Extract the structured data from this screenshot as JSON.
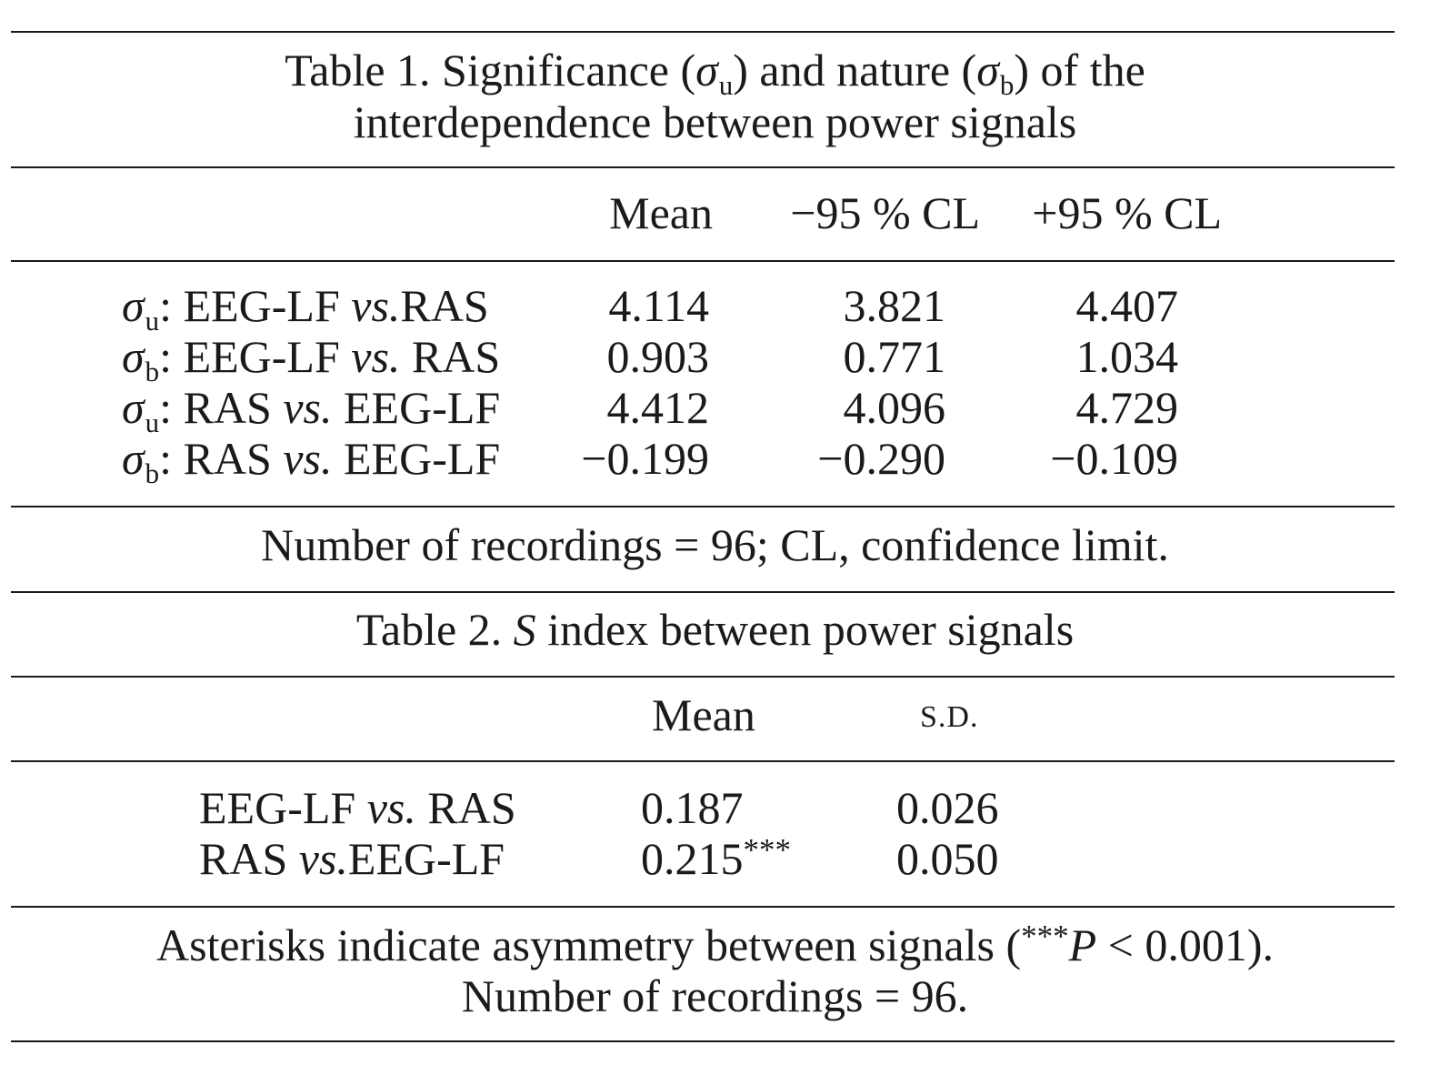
{
  "table1": {
    "title_prefix": "Table 1. Significance (",
    "title_sigma": "σ",
    "title_sub_u": "u",
    "title_mid": ") and nature (",
    "title_sub_b": "b",
    "title_suffix": ") of the",
    "title_line2": "interdependence between power signals",
    "columns": [
      "Mean",
      "−95 % CL",
      "+95 % CL"
    ],
    "rows": [
      {
        "sigma": "σ",
        "sub": "u",
        "pre": ": EEG-LF ",
        "vs": "vs.",
        "post": "RAS",
        "mean": "4.114",
        "lo": "3.821",
        "hi": "4.407"
      },
      {
        "sigma": "σ",
        "sub": "b",
        "pre": ": EEG-LF ",
        "vs": "vs.",
        "post": " RAS",
        "mean": "0.903",
        "lo": "0.771",
        "hi": "1.034"
      },
      {
        "sigma": "σ",
        "sub": "u",
        "pre": ": RAS ",
        "vs": "vs.",
        "post": " EEG-LF",
        "mean": "4.412",
        "lo": "4.096",
        "hi": "4.729"
      },
      {
        "sigma": "σ",
        "sub": "b",
        "pre": ": RAS ",
        "vs": "vs.",
        "post": " EEG-LF",
        "mean": "−0.199",
        "lo": "−0.290",
        "hi": "−0.109"
      }
    ],
    "footnote": "Number of recordings = 96; CL, confidence limit."
  },
  "table2": {
    "title_prefix": "Table 2. ",
    "title_italic": "S",
    "title_suffix": " index between power signals",
    "columns": [
      "Mean",
      "S.D."
    ],
    "rows": [
      {
        "pre": "EEG-LF ",
        "vs": "vs.",
        "post": " RAS",
        "mean": "0.187",
        "stars": "",
        "sd": "0.026"
      },
      {
        "pre": "RAS ",
        "vs": "vs.",
        "post": "EEG-LF",
        "mean": "0.215",
        "stars": "***",
        "sd": "0.050"
      }
    ],
    "footnote_line1_prefix": "Asterisks indicate asymmetry between signals (",
    "footnote_stars": "***",
    "footnote_p": "P",
    "footnote_line1_suffix": " < 0.001).",
    "footnote_line2": "Number of recordings = 96."
  }
}
